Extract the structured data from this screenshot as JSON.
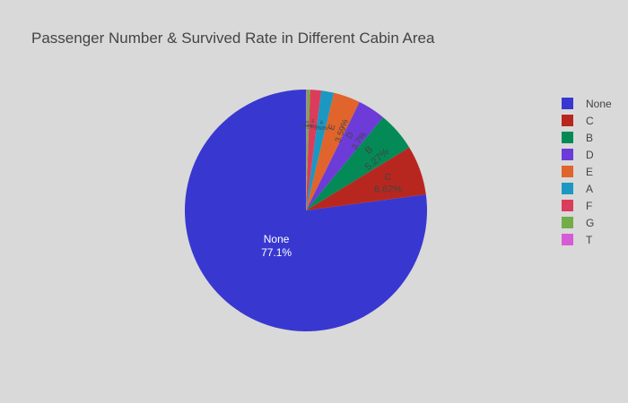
{
  "chart_data": {
    "type": "pie",
    "title": "Passenger Number & Survived Rate in Different Cabin Area",
    "categories": [
      "None",
      "C",
      "B",
      "D",
      "E",
      "A",
      "F",
      "G",
      "T"
    ],
    "values": [
      77.1,
      6.62,
      5.27,
      3.7,
      3.59,
      1.68,
      1.46,
      0.449,
      0.112
    ],
    "labels": [
      "77.1%",
      "6.62%",
      "5.27%",
      "3.7%",
      "3.59%",
      "1.68%",
      "1.46%",
      "0.449%",
      "0.112%"
    ],
    "colors": [
      "#3838d0",
      "#b8271f",
      "#048a57",
      "#6c3bd8",
      "#e0642b",
      "#1b98c2",
      "#db3c5c",
      "#72ad47",
      "#d65bd6"
    ],
    "legend": "right"
  }
}
